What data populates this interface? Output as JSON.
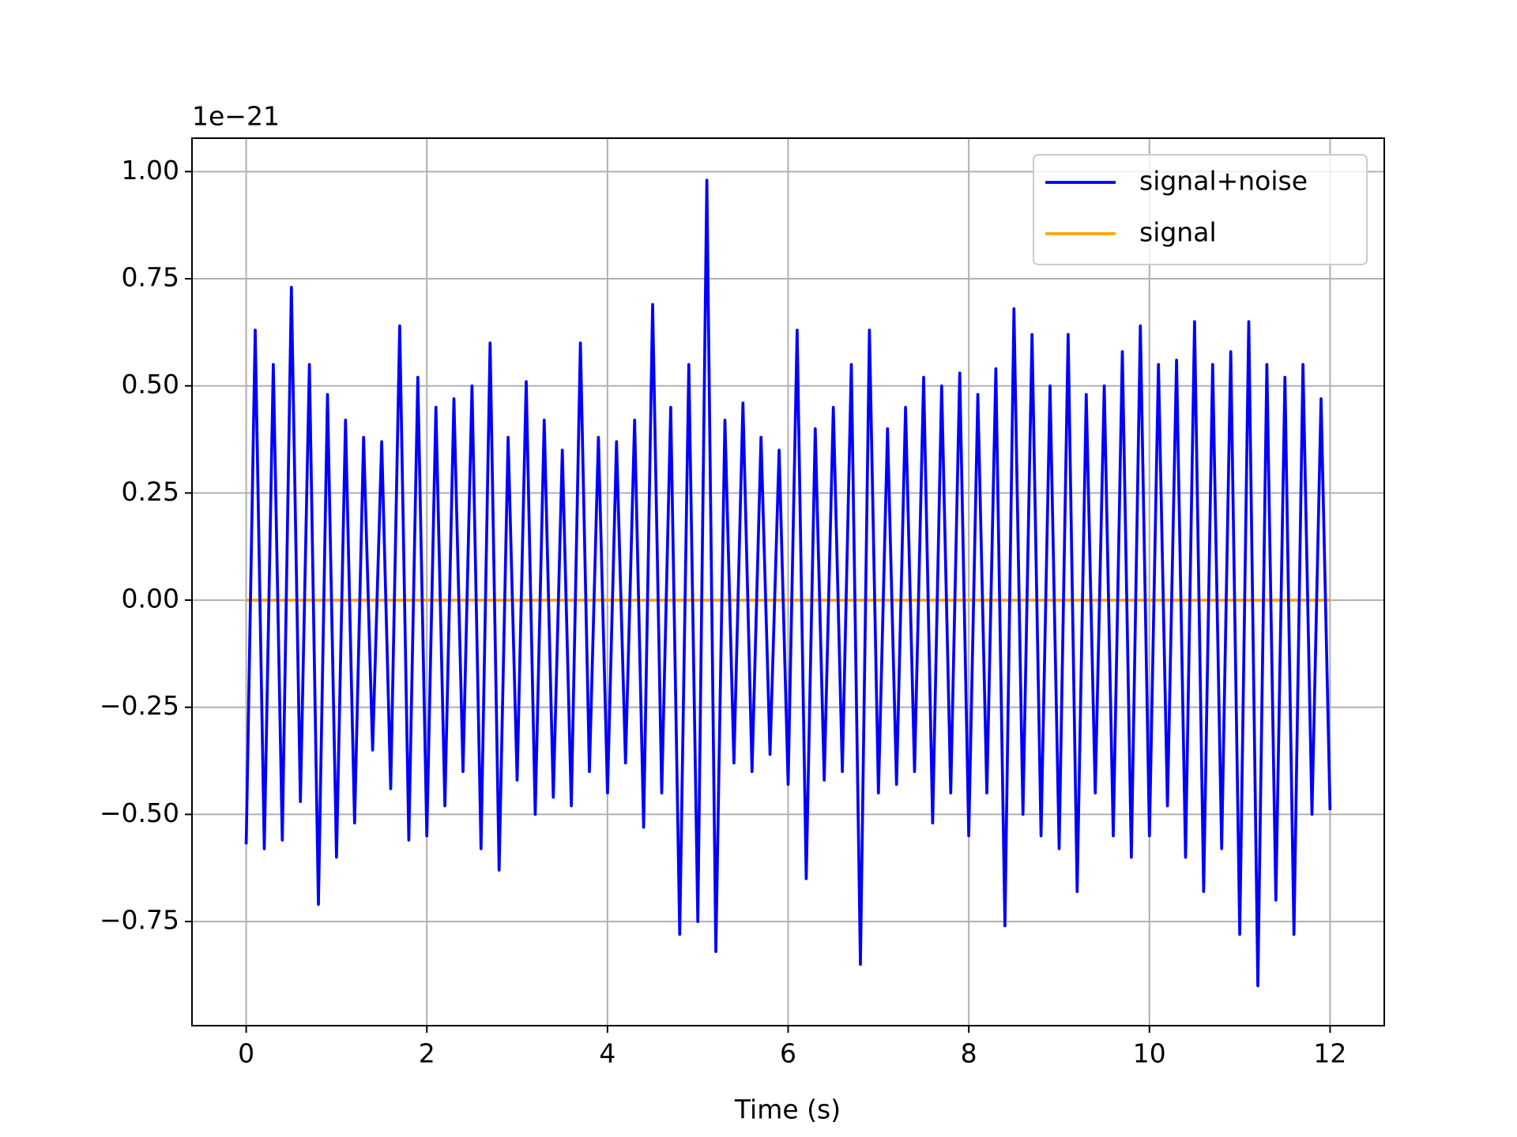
{
  "chart_data": {
    "type": "line",
    "xlabel": "Time (s)",
    "offset_label": "1e−21",
    "x": [
      0,
      0.1,
      0.2,
      0.3,
      0.4,
      0.5,
      0.6,
      0.7,
      0.8,
      0.9,
      1,
      1.1,
      1.2,
      1.3,
      1.4,
      1.5,
      1.6,
      1.7,
      1.8,
      1.9,
      2,
      2.1,
      2.2,
      2.3,
      2.4,
      2.5,
      2.6,
      2.7,
      2.8,
      2.9,
      3,
      3.1,
      3.2,
      3.3,
      3.4,
      3.5,
      3.6,
      3.7,
      3.8,
      3.9,
      4,
      4.1,
      4.2,
      4.3,
      4.4,
      4.5,
      4.6,
      4.7,
      4.8,
      4.9,
      5,
      5.1,
      5.2,
      5.3,
      5.4,
      5.5,
      5.6,
      5.7,
      5.8,
      5.9,
      6,
      6.1,
      6.2,
      6.3,
      6.4,
      6.5,
      6.6,
      6.7,
      6.8,
      6.9,
      7,
      7.1,
      7.2,
      7.3,
      7.4,
      7.5,
      7.6,
      7.7,
      7.8,
      7.9,
      8,
      8.1,
      8.2,
      8.3,
      8.4,
      8.5,
      8.6,
      8.7,
      8.8,
      8.9,
      9,
      9.1,
      9.2,
      9.3,
      9.4,
      9.5,
      9.6,
      9.7,
      9.8,
      9.9,
      10,
      10.1,
      10.2,
      10.3,
      10.4,
      10.5,
      10.6,
      10.7,
      10.8,
      10.9,
      11,
      11.1,
      11.2,
      11.3,
      11.4,
      11.5,
      11.6,
      11.7,
      11.8,
      11.9,
      12
    ],
    "series": [
      {
        "name": "signal",
        "color": "#ffa500",
        "values": [
          0,
          0,
          0,
          0,
          0,
          0,
          0,
          0,
          0,
          0,
          0,
          0,
          0,
          0,
          0,
          0,
          0,
          0,
          0,
          0,
          0,
          0,
          0,
          0,
          0,
          0,
          0,
          0,
          0,
          0,
          0,
          0,
          0,
          0,
          0,
          0,
          0,
          0,
          0,
          0,
          0,
          0,
          0,
          0,
          0,
          0,
          0,
          0,
          0,
          0,
          0,
          0,
          0,
          0,
          0,
          0,
          0,
          0,
          0,
          0,
          0,
          0,
          0,
          0,
          0,
          0,
          0,
          0,
          0,
          0,
          0,
          0,
          0,
          0,
          0,
          0,
          0,
          0,
          0,
          0,
          0,
          0,
          0,
          0,
          0,
          0,
          0,
          0,
          0,
          0,
          0,
          0,
          0,
          0,
          0,
          0,
          0,
          0,
          0,
          0,
          0,
          0,
          0,
          0,
          0,
          0,
          0,
          0,
          0,
          0,
          0,
          0,
          0,
          0,
          0,
          0,
          0,
          0,
          0,
          0,
          0
        ]
      },
      {
        "name": "signal+noise",
        "color": "#0000ff",
        "values": [
          -0.57,
          0.63,
          -0.58,
          0.55,
          -0.56,
          0.73,
          -0.47,
          0.55,
          -0.71,
          0.48,
          -0.6,
          0.42,
          -0.52,
          0.38,
          -0.35,
          0.37,
          -0.44,
          0.64,
          -0.56,
          0.52,
          -0.55,
          0.45,
          -0.48,
          0.47,
          -0.4,
          0.5,
          -0.58,
          0.6,
          -0.63,
          0.38,
          -0.42,
          0.51,
          -0.5,
          0.42,
          -0.46,
          0.35,
          -0.48,
          0.6,
          -0.4,
          0.38,
          -0.45,
          0.37,
          -0.38,
          0.42,
          -0.53,
          0.69,
          -0.45,
          0.45,
          -0.78,
          0.55,
          -0.75,
          0.98,
          -0.82,
          0.42,
          -0.38,
          0.46,
          -0.4,
          0.38,
          -0.36,
          0.35,
          -0.43,
          0.63,
          -0.65,
          0.4,
          -0.42,
          0.45,
          -0.4,
          0.55,
          -0.85,
          0.63,
          -0.45,
          0.4,
          -0.43,
          0.45,
          -0.4,
          0.52,
          -0.52,
          0.5,
          -0.45,
          0.53,
          -0.55,
          0.48,
          -0.45,
          0.54,
          -0.76,
          0.68,
          -0.5,
          0.62,
          -0.55,
          0.5,
          -0.58,
          0.62,
          -0.68,
          0.48,
          -0.45,
          0.5,
          -0.55,
          0.58,
          -0.6,
          0.64,
          -0.55,
          0.55,
          -0.48,
          0.56,
          -0.6,
          0.65,
          -0.68,
          0.55,
          -0.58,
          0.58,
          -0.78,
          0.65,
          -0.9,
          0.55,
          -0.7,
          0.52,
          -0.78,
          0.55,
          -0.5,
          0.47,
          -0.49
        ]
      }
    ],
    "legend_order": [
      1,
      0
    ],
    "legend": "upper right",
    "xlim": [
      -0.6,
      12.6
    ],
    "xticks": [
      0,
      2,
      4,
      6,
      8,
      10,
      12
    ],
    "ylim": [
      -0.993,
      1.078
    ],
    "yticks": [
      {
        "value": -0.75,
        "label": "−0.75"
      },
      {
        "value": -0.5,
        "label": "−0.50"
      },
      {
        "value": -0.25,
        "label": "−0.25"
      },
      {
        "value": 0,
        "label": "0.00"
      },
      {
        "value": 0.25,
        "label": "0.25"
      },
      {
        "value": 0.5,
        "label": "0.50"
      },
      {
        "value": 0.75,
        "label": "0.75"
      },
      {
        "value": 1,
        "label": "1.00"
      }
    ],
    "grid": true
  }
}
